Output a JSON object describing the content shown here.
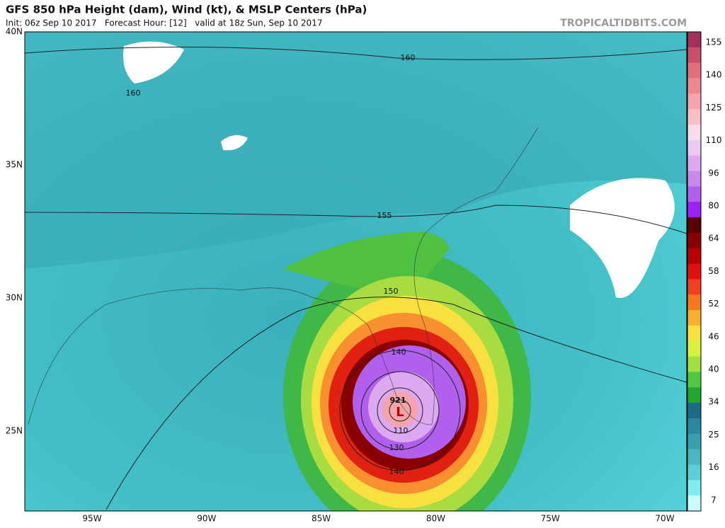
{
  "header": {
    "title": "GFS 850 hPa Height (dam), Wind (kt), & MSLP Centers (hPa)",
    "subtitle": "Init: 06z Sep 10 2017   Forecast Hour: [12]   valid at 18z Sun, Sep 10 2017",
    "credit": "TROPICALTIDBITS.COM"
  },
  "map": {
    "lat_labels": [
      "40N",
      "35N",
      "30N",
      "25N"
    ],
    "lon_labels": [
      "95W",
      "90W",
      "85W",
      "80W",
      "75W",
      "70W"
    ],
    "contour_labels": [
      160,
      160,
      155,
      150,
      140,
      110,
      130,
      140
    ],
    "low": {
      "symbol": "L",
      "pressure": 921
    }
  },
  "colorbar": {
    "ticks": [
      155,
      140,
      125,
      110,
      96,
      80,
      64,
      58,
      52,
      46,
      40,
      34,
      25,
      16,
      7
    ],
    "colors": [
      "#a3305c",
      "#c8506e",
      "#e0707c",
      "#ec8890",
      "#f4a4aa",
      "#f8c0c4",
      "#f8dcec",
      "#ecc8f4",
      "#dca8f0",
      "#c888ec",
      "#b060ec",
      "#9c20f8",
      "#5a0000",
      "#8a0000",
      "#b80000",
      "#e01010",
      "#f04020",
      "#f87820",
      "#f8b030",
      "#f8e040",
      "#d8f040",
      "#a0e040",
      "#50c840",
      "#20a830",
      "#1a6a88",
      "#2a88a0",
      "#3aa0b0",
      "#48b8c0",
      "#5cd0d8",
      "#80eef0",
      "#c8fcfc"
    ]
  }
}
